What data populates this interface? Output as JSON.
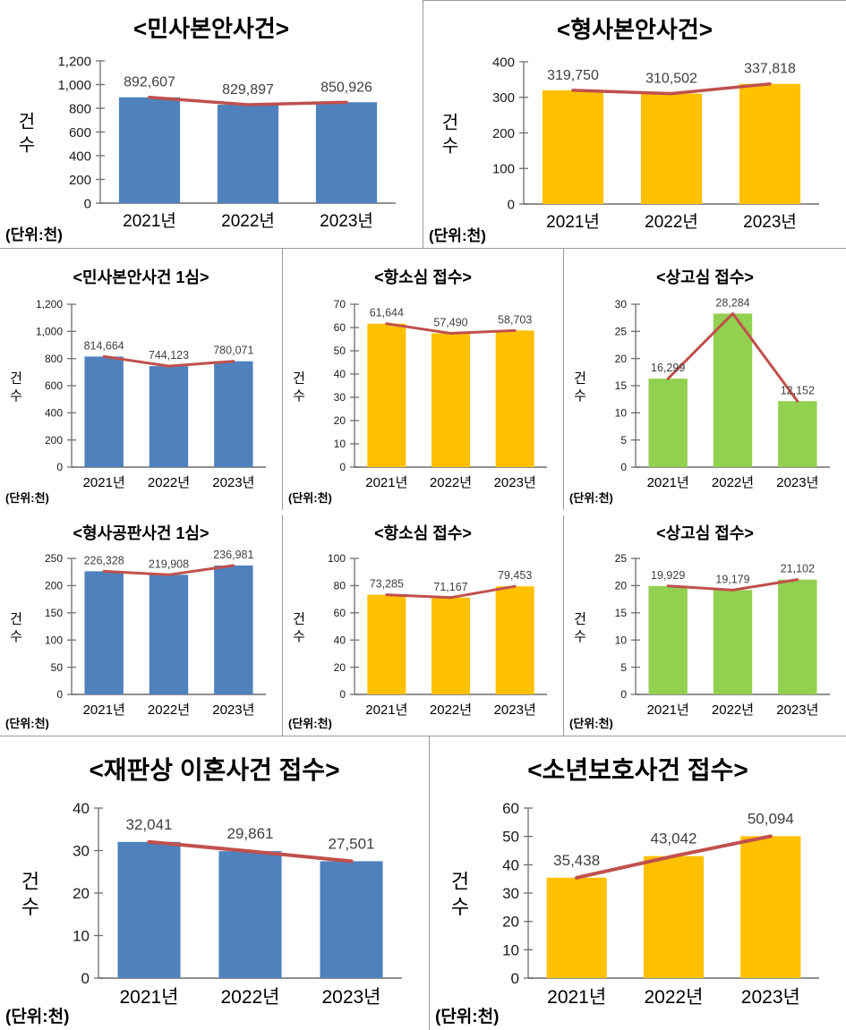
{
  "palette": {
    "bar_blue": "#4F81BD",
    "bar_yellow": "#FFC000",
    "bar_green": "#92D050",
    "trend_line": "#C0504D",
    "grid_border": "#9a9a9a",
    "axis_gray": "#6e6e6e",
    "value_label_gray": "#3f3f3f"
  },
  "chart_data": [
    {
      "type": "bar",
      "name": "civil-main-cases",
      "title": "<민사본안사건>",
      "categories": [
        "2021년",
        "2022년",
        "2023년"
      ],
      "values": [
        892607,
        829897,
        850926
      ],
      "value_labels": [
        "892,607",
        "829,897",
        "850,926"
      ],
      "unit_divisor": 1000,
      "ylabel": "건수",
      "unit_label": "(단위:천)",
      "ylim": [
        0,
        1200
      ],
      "y_tick_labels": [
        "0",
        "200",
        "400",
        "600",
        "800",
        "1,000",
        "1,200"
      ],
      "bar_color": "#4F81BD",
      "line_color": "#C0504D",
      "overlay": "line"
    },
    {
      "type": "bar",
      "name": "criminal-main-cases",
      "title": "<형사본안사건>",
      "categories": [
        "2021년",
        "2022년",
        "2023년"
      ],
      "values": [
        319750,
        310502,
        337818
      ],
      "value_labels": [
        "319,750",
        "310,502",
        "337,818"
      ],
      "unit_divisor": 1000,
      "ylabel": "건수",
      "unit_label": "(단위:천)",
      "ylim": [
        0,
        400
      ],
      "y_tick_labels": [
        "0",
        "100",
        "200",
        "300",
        "400"
      ],
      "bar_color": "#FFC000",
      "line_color": "#C0504D",
      "overlay": "line"
    },
    {
      "type": "bar",
      "name": "civil-main-first-instance",
      "title": "<민사본안사건 1심>",
      "categories": [
        "2021년",
        "2022년",
        "2023년"
      ],
      "values": [
        814664,
        744123,
        780071
      ],
      "value_labels": [
        "814,664",
        "744,123",
        "780,071"
      ],
      "unit_divisor": 1000,
      "ylabel": "건수",
      "unit_label": "(단위:천)",
      "ylim": [
        0,
        1200
      ],
      "y_tick_labels": [
        "0",
        "200",
        "400",
        "600",
        "800",
        "1,000",
        "1,200"
      ],
      "bar_color": "#4F81BD",
      "line_color": "#C0504D",
      "overlay": "line"
    },
    {
      "type": "bar",
      "name": "civil-appeal-filings",
      "title": "<항소심 접수>",
      "categories": [
        "2021년",
        "2022년",
        "2023년"
      ],
      "values": [
        61644,
        57490,
        58703
      ],
      "value_labels": [
        "61,644",
        "57,490",
        "58,703"
      ],
      "unit_divisor": 1000,
      "ylabel": "건수",
      "unit_label": "(단위:천)",
      "ylim": [
        0,
        70
      ],
      "y_tick_labels": [
        "0",
        "10",
        "20",
        "30",
        "40",
        "50",
        "60",
        "70"
      ],
      "bar_color": "#FFC000",
      "line_color": "#C0504D",
      "overlay": "line"
    },
    {
      "type": "bar",
      "name": "civil-supreme-filings",
      "title": "<상고심 접수>",
      "categories": [
        "2021년",
        "2022년",
        "2023년"
      ],
      "values": [
        16299,
        28284,
        12152
      ],
      "value_labels": [
        "16,299",
        "28,284",
        "12,152"
      ],
      "unit_divisor": 1000,
      "ylabel": "건수",
      "unit_label": "(단위:천)",
      "ylim": [
        0,
        30
      ],
      "y_tick_labels": [
        "0",
        "5",
        "10",
        "15",
        "20",
        "25",
        "30"
      ],
      "bar_color": "#92D050",
      "line_color": "#C0504D",
      "overlay": "line"
    },
    {
      "type": "bar",
      "name": "criminal-trial-first-instance",
      "title": "<형사공판사건 1심>",
      "categories": [
        "2021년",
        "2022년",
        "2023년"
      ],
      "values": [
        226328,
        219908,
        236981
      ],
      "value_labels": [
        "226,328",
        "219,908",
        "236,981"
      ],
      "unit_divisor": 1000,
      "ylabel": "건수",
      "unit_label": "(단위:천)",
      "ylim": [
        0,
        250
      ],
      "y_tick_labels": [
        "0",
        "50",
        "100",
        "150",
        "200",
        "250"
      ],
      "bar_color": "#4F81BD",
      "line_color": "#C0504D",
      "overlay": "line"
    },
    {
      "type": "bar",
      "name": "criminal-appeal-filings",
      "title": "<항소심 접수>",
      "categories": [
        "2021년",
        "2022년",
        "2023년"
      ],
      "values": [
        73285,
        71167,
        79453
      ],
      "value_labels": [
        "73,285",
        "71,167",
        "79,453"
      ],
      "unit_divisor": 1000,
      "ylabel": "건수",
      "unit_label": "(단위:천)",
      "ylim": [
        0,
        100
      ],
      "y_tick_labels": [
        "0",
        "20",
        "40",
        "60",
        "80",
        "100"
      ],
      "bar_color": "#FFC000",
      "line_color": "#C0504D",
      "overlay": "line"
    },
    {
      "type": "bar",
      "name": "criminal-supreme-filings",
      "title": "<상고심 접수>",
      "categories": [
        "2021년",
        "2022년",
        "2023년"
      ],
      "values": [
        19929,
        19179,
        21102
      ],
      "value_labels": [
        "19,929",
        "19,179",
        "21,102"
      ],
      "unit_divisor": 1000,
      "ylabel": "건수",
      "unit_label": "(단위:천)",
      "ylim": [
        0,
        25
      ],
      "y_tick_labels": [
        "0",
        "5",
        "10",
        "15",
        "20",
        "25"
      ],
      "bar_color": "#92D050",
      "line_color": "#C0504D",
      "overlay": "line"
    },
    {
      "type": "bar",
      "name": "judicial-divorce-filings",
      "title": "<재판상 이혼사건 접수>",
      "categories": [
        "2021년",
        "2022년",
        "2023년"
      ],
      "values": [
        32041,
        29861,
        27501
      ],
      "value_labels": [
        "32,041",
        "29,861",
        "27,501"
      ],
      "unit_divisor": 1000,
      "ylabel": "건수",
      "unit_label": "(단위:천)",
      "ylim": [
        0,
        40
      ],
      "y_tick_labels": [
        "0",
        "10",
        "20",
        "30",
        "40"
      ],
      "bar_color": "#4F81BD",
      "line_color": "#C0504D",
      "overlay": "line"
    },
    {
      "type": "bar",
      "name": "juvenile-protection-filings",
      "title": "<소년보호사건 접수>",
      "categories": [
        "2021년",
        "2022년",
        "2023년"
      ],
      "values": [
        35438,
        43042,
        50094
      ],
      "value_labels": [
        "35,438",
        "43,042",
        "50,094"
      ],
      "unit_divisor": 1000,
      "ylabel": "건수",
      "unit_label": "(단위:천)",
      "ylim": [
        0,
        60
      ],
      "y_tick_labels": [
        "0",
        "10",
        "20",
        "30",
        "40",
        "50",
        "60"
      ],
      "bar_color": "#FFC000",
      "line_color": "#C0504D",
      "overlay": "line"
    }
  ]
}
